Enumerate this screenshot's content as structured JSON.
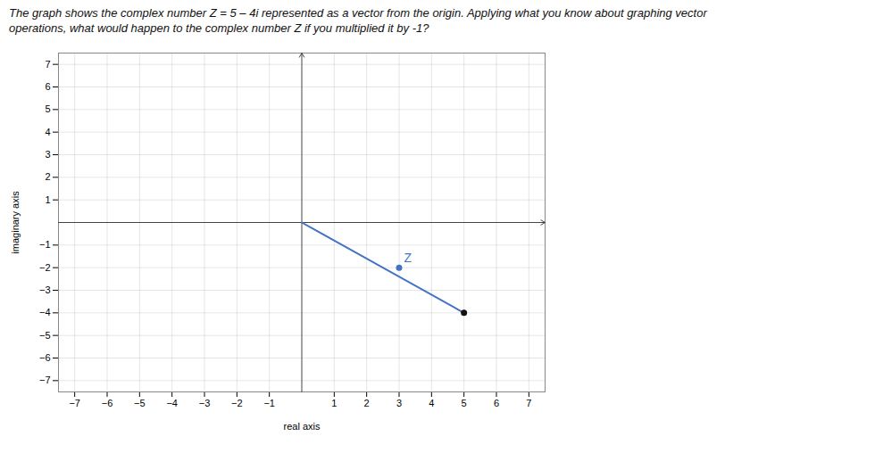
{
  "chart_data": {
    "type": "vector",
    "title": "The graph shows the complex number Z = 5 – 4i represented as a vector from the origin. Applying what you know about graphing vector\noperations, what would happen to the complex number Z if you multiplied it by -1?",
    "xlabel": "real axis",
    "ylabel": "imaginary axis",
    "xlim": [
      -7.5,
      7.5
    ],
    "ylim": [
      -7.5,
      7.5
    ],
    "xticks": [
      -7,
      -6,
      -5,
      -4,
      -3,
      -2,
      -1,
      1,
      2,
      3,
      4,
      5,
      6,
      7
    ],
    "yticks": [
      -7,
      -6,
      -5,
      -4,
      -3,
      -2,
      -1,
      1,
      2,
      3,
      4,
      5,
      6,
      7
    ],
    "grid": true,
    "series": [
      {
        "type": "line",
        "color": "#4472c4",
        "x": [
          0,
          5
        ],
        "values": [
          0,
          -4
        ]
      },
      {
        "type": "scatter",
        "color": "#111111",
        "x": [
          5
        ],
        "values": [
          -4
        ]
      },
      {
        "type": "scatter",
        "color": "#4472c4",
        "x": [
          3
        ],
        "values": [
          -2
        ]
      }
    ],
    "annotations": [
      {
        "text": "Z",
        "x": 3.15,
        "y": -1.75,
        "color": "#4472c4"
      }
    ]
  }
}
